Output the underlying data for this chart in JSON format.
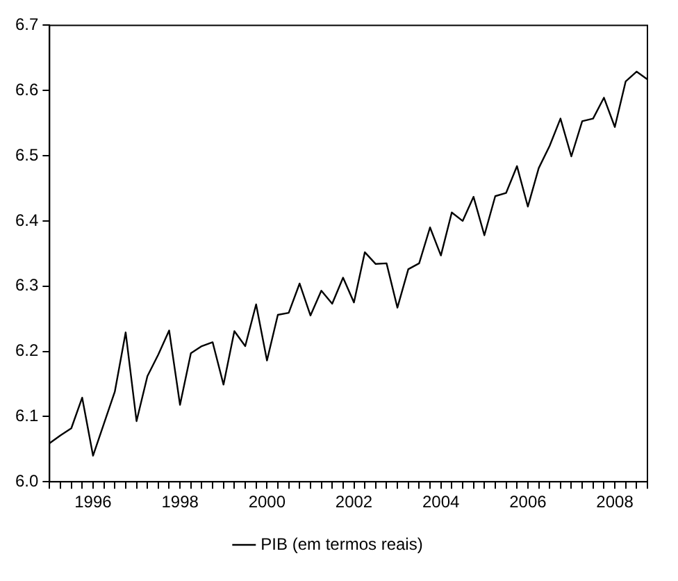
{
  "chart_data": {
    "type": "line",
    "x": [
      1995,
      1995.25,
      1995.5,
      1995.75,
      1996,
      1996.25,
      1996.5,
      1996.75,
      1997,
      1997.25,
      1997.5,
      1997.75,
      1998,
      1998.25,
      1998.5,
      1998.75,
      1999,
      1999.25,
      1999.5,
      1999.75,
      2000,
      2000.25,
      2000.5,
      2000.75,
      2001,
      2001.25,
      2001.5,
      2001.75,
      2002,
      2002.25,
      2002.5,
      2002.75,
      2003,
      2003.25,
      2003.5,
      2003.75,
      2004,
      2004.25,
      2004.5,
      2004.75,
      2005,
      2005.25,
      2005.5,
      2005.75,
      2006,
      2006.25,
      2006.5,
      2006.75,
      2007,
      2007.25,
      2007.5,
      2007.75,
      2008,
      2008.25,
      2008.5,
      2008.75
    ],
    "series": [
      {
        "name": "PIB (em termos reais)",
        "color": "#000000",
        "values": [
          6.059,
          6.071,
          6.082,
          6.129,
          6.04,
          6.089,
          6.138,
          6.229,
          6.093,
          6.162,
          6.195,
          6.232,
          6.118,
          6.197,
          6.208,
          6.214,
          6.149,
          6.231,
          6.208,
          6.272,
          6.186,
          6.256,
          6.259,
          6.304,
          6.255,
          6.293,
          6.273,
          6.313,
          6.275,
          6.352,
          6.334,
          6.335,
          6.267,
          6.326,
          6.335,
          6.39,
          6.347,
          6.413,
          6.4,
          6.437,
          6.378,
          6.438,
          6.443,
          6.484,
          6.422,
          6.481,
          6.515,
          6.557,
          6.499,
          6.553,
          6.557,
          6.589,
          6.544,
          6.614,
          6.629,
          6.617
        ]
      }
    ],
    "xlim": [
      1995,
      2008.75
    ],
    "xticks": [
      {
        "value": 1995,
        "label": null
      },
      {
        "value": 1995.25,
        "label": null
      },
      {
        "value": 1995.5,
        "label": null
      },
      {
        "value": 1995.75,
        "label": null
      },
      {
        "value": 1996,
        "label": "1996"
      },
      {
        "value": 1996.25,
        "label": null
      },
      {
        "value": 1996.5,
        "label": null
      },
      {
        "value": 1996.75,
        "label": null
      },
      {
        "value": 1997,
        "label": null
      },
      {
        "value": 1997.25,
        "label": null
      },
      {
        "value": 1997.5,
        "label": null
      },
      {
        "value": 1997.75,
        "label": null
      },
      {
        "value": 1998,
        "label": "1998"
      },
      {
        "value": 1998.25,
        "label": null
      },
      {
        "value": 1998.5,
        "label": null
      },
      {
        "value": 1998.75,
        "label": null
      },
      {
        "value": 1999,
        "label": null
      },
      {
        "value": 1999.25,
        "label": null
      },
      {
        "value": 1999.5,
        "label": null
      },
      {
        "value": 1999.75,
        "label": null
      },
      {
        "value": 2000,
        "label": "2000"
      },
      {
        "value": 2000.25,
        "label": null
      },
      {
        "value": 2000.5,
        "label": null
      },
      {
        "value": 2000.75,
        "label": null
      },
      {
        "value": 2001,
        "label": null
      },
      {
        "value": 2001.25,
        "label": null
      },
      {
        "value": 2001.5,
        "label": null
      },
      {
        "value": 2001.75,
        "label": null
      },
      {
        "value": 2002,
        "label": "2002"
      },
      {
        "value": 2002.25,
        "label": null
      },
      {
        "value": 2002.5,
        "label": null
      },
      {
        "value": 2002.75,
        "label": null
      },
      {
        "value": 2003,
        "label": null
      },
      {
        "value": 2003.25,
        "label": null
      },
      {
        "value": 2003.5,
        "label": null
      },
      {
        "value": 2003.75,
        "label": null
      },
      {
        "value": 2004,
        "label": "2004"
      },
      {
        "value": 2004.25,
        "label": null
      },
      {
        "value": 2004.5,
        "label": null
      },
      {
        "value": 2004.75,
        "label": null
      },
      {
        "value": 2005,
        "label": null
      },
      {
        "value": 2005.25,
        "label": null
      },
      {
        "value": 2005.5,
        "label": null
      },
      {
        "value": 2005.75,
        "label": null
      },
      {
        "value": 2006,
        "label": "2006"
      },
      {
        "value": 2006.25,
        "label": null
      },
      {
        "value": 2006.5,
        "label": null
      },
      {
        "value": 2006.75,
        "label": null
      },
      {
        "value": 2007,
        "label": null
      },
      {
        "value": 2007.25,
        "label": null
      },
      {
        "value": 2007.5,
        "label": null
      },
      {
        "value": 2007.75,
        "label": null
      },
      {
        "value": 2008,
        "label": "2008"
      },
      {
        "value": 2008.25,
        "label": null
      },
      {
        "value": 2008.5,
        "label": null
      },
      {
        "value": 2008.75,
        "label": null
      }
    ],
    "ylim": [
      6.0,
      6.7
    ],
    "yticks": [
      {
        "value": 6.0,
        "label": "6.0"
      },
      6.1,
      6.2,
      6.3,
      6.4,
      6.5,
      6.6,
      6.7
    ],
    "grid": false,
    "legend": "bottom",
    "marker": "none",
    "line_style": "solid"
  }
}
